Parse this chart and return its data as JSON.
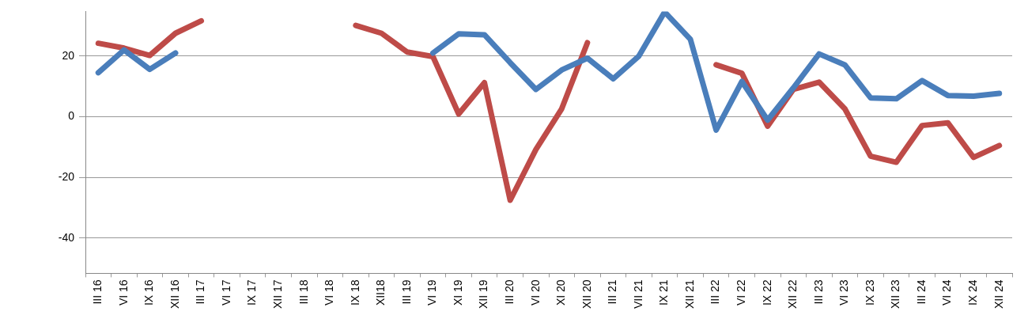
{
  "chart_data": {
    "type": "line",
    "categories": [
      "III 16",
      "VI 16",
      "IX 16",
      "XII 16",
      "III 17",
      "VI 17",
      "IX 17",
      "XII 17",
      "III 18",
      "VI 18",
      "IX 18",
      "XII18",
      "III 19",
      "VI 19",
      "XI 19",
      "XII 19",
      "III 20",
      "VI 20",
      "XI 20",
      "XII 20",
      "III 21",
      "VII 21",
      "IX 21",
      "XII 21",
      "III 22",
      "VI 22",
      "IX 22",
      "XII 22",
      "III 23",
      "VI 23",
      "IX 23",
      "XII 23",
      "III 24",
      "VI 24",
      "IX 24",
      "XII 24"
    ],
    "series": [
      {
        "color": "#4a7ebb",
        "values": [
          14.5,
          22,
          15.6,
          21,
          null,
          null,
          null,
          null,
          null,
          null,
          null,
          null,
          null,
          21,
          27.3,
          27,
          17.8,
          9,
          15.4,
          19.3,
          12.5,
          20,
          34.5,
          25.5,
          -4.4,
          11.6,
          -1.1,
          9.5,
          20.7,
          17.1,
          6.2,
          5.9,
          11.9,
          7,
          6.8,
          7.7
        ]
      },
      {
        "color": "#be4b48",
        "values": [
          24.2,
          22.6,
          20.2,
          27.5,
          31.6,
          null,
          null,
          null,
          null,
          null,
          30.1,
          27.5,
          21.3,
          19.8,
          0.9,
          11.2,
          -27.5,
          -10.8,
          2.6,
          24.4,
          null,
          null,
          null,
          null,
          17.1,
          14.3,
          -3.1,
          9,
          11.4,
          2.6,
          -13,
          -15,
          -2.9,
          -2,
          -13.4,
          -9.5
        ]
      }
    ],
    "ylim": [
      -51.6,
      34.7
    ],
    "yticks": [
      -40,
      -20,
      0,
      20
    ],
    "grid": "y",
    "marker": "none",
    "line_style": "solid"
  }
}
